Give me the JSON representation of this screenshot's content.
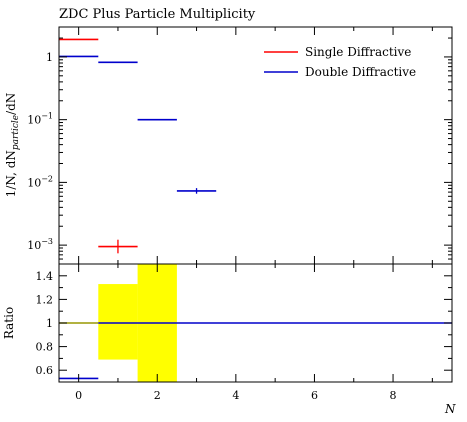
{
  "chart_data": [
    {
      "type": "line",
      "panel": "main",
      "title": "ZDC Plus Particle Multiplicity",
      "ylabel": "1/N, dN_particle/dN",
      "xlim": [
        -0.5,
        9.5
      ],
      "ylim": [
        0.0005,
        3
      ],
      "yscale": "log",
      "ytick_labels": [
        "1",
        "10^-1",
        "10^-2",
        "10^-3"
      ],
      "legend": {
        "position": "top-right",
        "entries": [
          "Single Diffractive",
          "Double Diffractive"
        ]
      },
      "series": [
        {
          "name": "Single Diffractive",
          "color": "#ff0000",
          "points": [
            {
              "x": 0,
              "xlo": -0.5,
              "xhi": 0.5,
              "y": 1.9,
              "ylo": 1.9,
              "yhi": 1.9
            },
            {
              "x": 1,
              "xlo": 0.5,
              "xhi": 1.5,
              "y": 0.00095,
              "ylo": 0.00074,
              "yhi": 0.00122
            }
          ]
        },
        {
          "name": "Double Diffractive",
          "color": "#0000cc",
          "points": [
            {
              "x": 0,
              "xlo": -0.5,
              "xhi": 0.5,
              "y": 1.02,
              "ylo": 1.02,
              "yhi": 1.02
            },
            {
              "x": 1,
              "xlo": 0.5,
              "xhi": 1.5,
              "y": 0.82,
              "ylo": 0.82,
              "yhi": 0.82
            },
            {
              "x": 2,
              "xlo": 1.5,
              "xhi": 2.5,
              "y": 0.1,
              "ylo": 0.098,
              "yhi": 0.102
            },
            {
              "x": 3,
              "xlo": 2.5,
              "xhi": 3.5,
              "y": 0.0073,
              "ylo": 0.0066,
              "yhi": 0.0081
            }
          ]
        }
      ]
    },
    {
      "type": "line",
      "panel": "ratio",
      "ylabel": "Ratio",
      "xlabel": "N",
      "xlim": [
        -0.5,
        9.5
      ],
      "ylim": [
        0.5,
        1.5
      ],
      "yticks": [
        0.6,
        0.8,
        1,
        1.2,
        1.4
      ],
      "ytick_labels": [
        "0.6",
        "0.8",
        "1",
        "1.2",
        "1.4"
      ],
      "xticks": [
        0,
        2,
        4,
        6,
        8
      ],
      "xtick_labels": [
        "0",
        "2",
        "4",
        "6",
        "8"
      ],
      "uncertainty_band": {
        "color": "#ffff00",
        "bins": [
          {
            "xlo": 0.5,
            "xhi": 1.5,
            "ylo": 0.69,
            "yhi": 1.33
          },
          {
            "xlo": 1.5,
            "xhi": 2.5,
            "ylo": 0.5,
            "yhi": 1.5
          }
        ]
      },
      "reference": {
        "color": "#999900",
        "y": 1.0,
        "xlo": -0.5,
        "xhi": 0.5
      },
      "series": [
        {
          "name": "Double Diffractive",
          "color": "#0000cc",
          "segments": [
            {
              "xlo": -0.5,
              "xhi": 0.5,
              "y": 0.53
            },
            {
              "xlo": 0.5,
              "xhi": 9.5,
              "y": 1.0
            }
          ]
        }
      ]
    }
  ]
}
